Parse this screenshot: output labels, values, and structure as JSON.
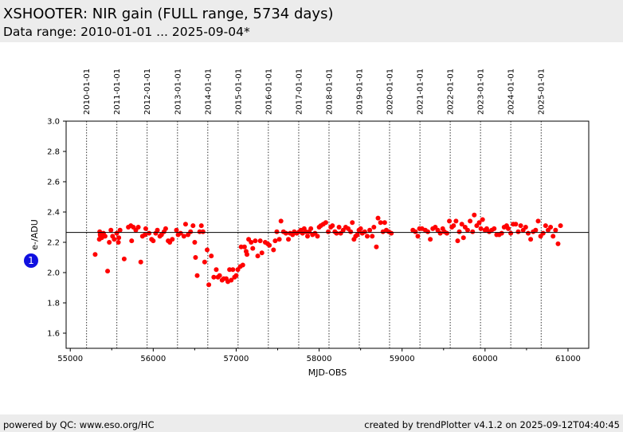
{
  "header": {
    "title": "XSHOOTER: NIR gain (FULL range, 5734 days)",
    "subtitle": "Data range: 2010-01-01 ... 2025-09-04*"
  },
  "footer": {
    "left": "powered by QC: www.eso.org/HC",
    "right": "created by trendPlotter v4.1.2 on 2025-09-12T04:40:45"
  },
  "badge": {
    "label": "1",
    "color": "#1010e0"
  },
  "chart_data": {
    "type": "scatter",
    "xlabel": "MJD-OBS",
    "ylabel": "e-/ADU",
    "xlim": [
      54950,
      61250
    ],
    "ylim": [
      1.5,
      3.0
    ],
    "x_ticks": [
      55000,
      56000,
      57000,
      58000,
      59000,
      60000,
      61000
    ],
    "x_tick_labels": [
      "55000",
      "56000",
      "57000",
      "58000",
      "59000",
      "60000",
      "61000"
    ],
    "y_ticks": [
      1.6,
      1.8,
      2.0,
      2.2,
      2.4,
      2.6,
      2.8,
      3.0
    ],
    "y_tick_labels": [
      "1.6",
      "1.8",
      "2.0",
      "2.2",
      "2.4",
      "2.6",
      "2.8",
      "3.0"
    ],
    "reference_line": 2.265,
    "point_color": "#ff0000",
    "year_markers": [
      {
        "label": "2010-01-01",
        "mjd": 55197
      },
      {
        "label": "2011-01-01",
        "mjd": 55562
      },
      {
        "label": "2012-01-01",
        "mjd": 55927
      },
      {
        "label": "2013-01-01",
        "mjd": 56293
      },
      {
        "label": "2014-01-01",
        "mjd": 56658
      },
      {
        "label": "2015-01-01",
        "mjd": 57023
      },
      {
        "label": "2016-01-01",
        "mjd": 57388
      },
      {
        "label": "2017-01-01",
        "mjd": 57754
      },
      {
        "label": "2018-01-01",
        "mjd": 58119
      },
      {
        "label": "2019-01-01",
        "mjd": 58484
      },
      {
        "label": "2020-01-01",
        "mjd": 58849
      },
      {
        "label": "2021-01-01",
        "mjd": 59215
      },
      {
        "label": "2022-01-01",
        "mjd": 59580
      },
      {
        "label": "2023-01-01",
        "mjd": 59945
      },
      {
        "label": "2024-01-01",
        "mjd": 60310
      },
      {
        "label": "2025-01-01",
        "mjd": 60676
      }
    ],
    "points": [
      [
        55300,
        2.12
      ],
      [
        55350,
        2.22
      ],
      [
        55355,
        2.27
      ],
      [
        55360,
        2.25
      ],
      [
        55365,
        2.24
      ],
      [
        55380,
        2.23
      ],
      [
        55400,
        2.26
      ],
      [
        55420,
        2.24
      ],
      [
        55450,
        2.01
      ],
      [
        55470,
        2.2
      ],
      [
        55490,
        2.28
      ],
      [
        55510,
        2.24
      ],
      [
        55530,
        2.22
      ],
      [
        55560,
        2.26
      ],
      [
        55580,
        2.2
      ],
      [
        55585,
        2.23
      ],
      [
        55600,
        2.28
      ],
      [
        55650,
        2.09
      ],
      [
        55700,
        2.3
      ],
      [
        55730,
        2.31
      ],
      [
        55740,
        2.21
      ],
      [
        55760,
        2.3
      ],
      [
        55790,
        2.28
      ],
      [
        55820,
        2.3
      ],
      [
        55850,
        2.07
      ],
      [
        55870,
        2.24
      ],
      [
        55900,
        2.25
      ],
      [
        55910,
        2.29
      ],
      [
        55950,
        2.26
      ],
      [
        55980,
        2.22
      ],
      [
        56000,
        2.21
      ],
      [
        56030,
        2.26
      ],
      [
        56050,
        2.28
      ],
      [
        56080,
        2.24
      ],
      [
        56100,
        2.25
      ],
      [
        56130,
        2.27
      ],
      [
        56150,
        2.29
      ],
      [
        56180,
        2.21
      ],
      [
        56200,
        2.2
      ],
      [
        56230,
        2.22
      ],
      [
        56280,
        2.28
      ],
      [
        56300,
        2.25
      ],
      [
        56330,
        2.26
      ],
      [
        56370,
        2.24
      ],
      [
        56390,
        2.32
      ],
      [
        56420,
        2.25
      ],
      [
        56450,
        2.27
      ],
      [
        56480,
        2.31
      ],
      [
        56500,
        2.2
      ],
      [
        56510,
        2.1
      ],
      [
        56530,
        1.98
      ],
      [
        56560,
        2.27
      ],
      [
        56580,
        2.31
      ],
      [
        56600,
        2.27
      ],
      [
        56620,
        2.07
      ],
      [
        56650,
        2.15
      ],
      [
        56670,
        1.92
      ],
      [
        56700,
        2.11
      ],
      [
        56730,
        1.97
      ],
      [
        56760,
        2.02
      ],
      [
        56780,
        1.97
      ],
      [
        56800,
        1.98
      ],
      [
        56830,
        1.95
      ],
      [
        56850,
        1.96
      ],
      [
        56880,
        1.96
      ],
      [
        56900,
        1.94
      ],
      [
        56920,
        2.02
      ],
      [
        56940,
        1.95
      ],
      [
        56960,
        2.02
      ],
      [
        56980,
        1.97
      ],
      [
        57000,
        1.98
      ],
      [
        57020,
        2.02
      ],
      [
        57050,
        2.04
      ],
      [
        57060,
        2.17
      ],
      [
        57080,
        2.05
      ],
      [
        57100,
        2.17
      ],
      [
        57120,
        2.14
      ],
      [
        57130,
        2.12
      ],
      [
        57150,
        2.22
      ],
      [
        57180,
        2.2
      ],
      [
        57200,
        2.16
      ],
      [
        57230,
        2.21
      ],
      [
        57260,
        2.11
      ],
      [
        57290,
        2.21
      ],
      [
        57310,
        2.13
      ],
      [
        57350,
        2.2
      ],
      [
        57380,
        2.19
      ],
      [
        57400,
        2.18
      ],
      [
        57450,
        2.15
      ],
      [
        57470,
        2.21
      ],
      [
        57490,
        2.27
      ],
      [
        57520,
        2.22
      ],
      [
        57540,
        2.34
      ],
      [
        57570,
        2.27
      ],
      [
        57600,
        2.26
      ],
      [
        57630,
        2.22
      ],
      [
        57650,
        2.26
      ],
      [
        57680,
        2.25
      ],
      [
        57700,
        2.27
      ],
      [
        57730,
        2.26
      ],
      [
        57760,
        2.27
      ],
      [
        57780,
        2.28
      ],
      [
        57800,
        2.26
      ],
      [
        57820,
        2.29
      ],
      [
        57840,
        2.27
      ],
      [
        57860,
        2.24
      ],
      [
        57880,
        2.27
      ],
      [
        57900,
        2.29
      ],
      [
        57920,
        2.25
      ],
      [
        57950,
        2.26
      ],
      [
        57980,
        2.24
      ],
      [
        58000,
        2.3
      ],
      [
        58020,
        2.31
      ],
      [
        58050,
        2.32
      ],
      [
        58080,
        2.33
      ],
      [
        58110,
        2.27
      ],
      [
        58140,
        2.3
      ],
      [
        58160,
        2.31
      ],
      [
        58190,
        2.27
      ],
      [
        58210,
        2.26
      ],
      [
        58240,
        2.3
      ],
      [
        58260,
        2.26
      ],
      [
        58290,
        2.28
      ],
      [
        58320,
        2.3
      ],
      [
        58350,
        2.29
      ],
      [
        58380,
        2.27
      ],
      [
        58400,
        2.33
      ],
      [
        58420,
        2.22
      ],
      [
        58440,
        2.24
      ],
      [
        58460,
        2.25
      ],
      [
        58480,
        2.28
      ],
      [
        58500,
        2.29
      ],
      [
        58520,
        2.26
      ],
      [
        58550,
        2.27
      ],
      [
        58580,
        2.24
      ],
      [
        58610,
        2.28
      ],
      [
        58640,
        2.24
      ],
      [
        58660,
        2.3
      ],
      [
        58690,
        2.17
      ],
      [
        58710,
        2.36
      ],
      [
        58740,
        2.33
      ],
      [
        58770,
        2.27
      ],
      [
        58790,
        2.33
      ],
      [
        58810,
        2.28
      ],
      [
        58840,
        2.27
      ],
      [
        58870,
        2.26
      ],
      [
        59130,
        2.28
      ],
      [
        59160,
        2.27
      ],
      [
        59190,
        2.24
      ],
      [
        59210,
        2.29
      ],
      [
        59240,
        2.29
      ],
      [
        59280,
        2.28
      ],
      [
        59310,
        2.27
      ],
      [
        59340,
        2.22
      ],
      [
        59370,
        2.29
      ],
      [
        59400,
        2.3
      ],
      [
        59430,
        2.28
      ],
      [
        59460,
        2.26
      ],
      [
        59490,
        2.29
      ],
      [
        59510,
        2.27
      ],
      [
        59540,
        2.26
      ],
      [
        59570,
        2.34
      ],
      [
        59600,
        2.3
      ],
      [
        59620,
        2.31
      ],
      [
        59650,
        2.34
      ],
      [
        59670,
        2.21
      ],
      [
        59690,
        2.27
      ],
      [
        59720,
        2.32
      ],
      [
        59740,
        2.23
      ],
      [
        59760,
        2.3
      ],
      [
        59790,
        2.28
      ],
      [
        59820,
        2.34
      ],
      [
        59850,
        2.27
      ],
      [
        59870,
        2.38
      ],
      [
        59900,
        2.31
      ],
      [
        59930,
        2.33
      ],
      [
        59950,
        2.29
      ],
      [
        59970,
        2.35
      ],
      [
        60000,
        2.28
      ],
      [
        60020,
        2.29
      ],
      [
        60050,
        2.27
      ],
      [
        60080,
        2.28
      ],
      [
        60110,
        2.29
      ],
      [
        60140,
        2.25
      ],
      [
        60170,
        2.25
      ],
      [
        60200,
        2.26
      ],
      [
        60230,
        2.3
      ],
      [
        60260,
        2.31
      ],
      [
        60280,
        2.29
      ],
      [
        60310,
        2.26
      ],
      [
        60340,
        2.32
      ],
      [
        60370,
        2.32
      ],
      [
        60400,
        2.27
      ],
      [
        60430,
        2.31
      ],
      [
        60460,
        2.28
      ],
      [
        60490,
        2.3
      ],
      [
        60520,
        2.26
      ],
      [
        60550,
        2.22
      ],
      [
        60580,
        2.27
      ],
      [
        60610,
        2.28
      ],
      [
        60640,
        2.34
      ],
      [
        60670,
        2.24
      ],
      [
        60700,
        2.26
      ],
      [
        60730,
        2.31
      ],
      [
        60760,
        2.28
      ],
      [
        60790,
        2.3
      ],
      [
        60820,
        2.24
      ],
      [
        60850,
        2.28
      ],
      [
        60880,
        2.19
      ],
      [
        60910,
        2.31
      ]
    ]
  }
}
